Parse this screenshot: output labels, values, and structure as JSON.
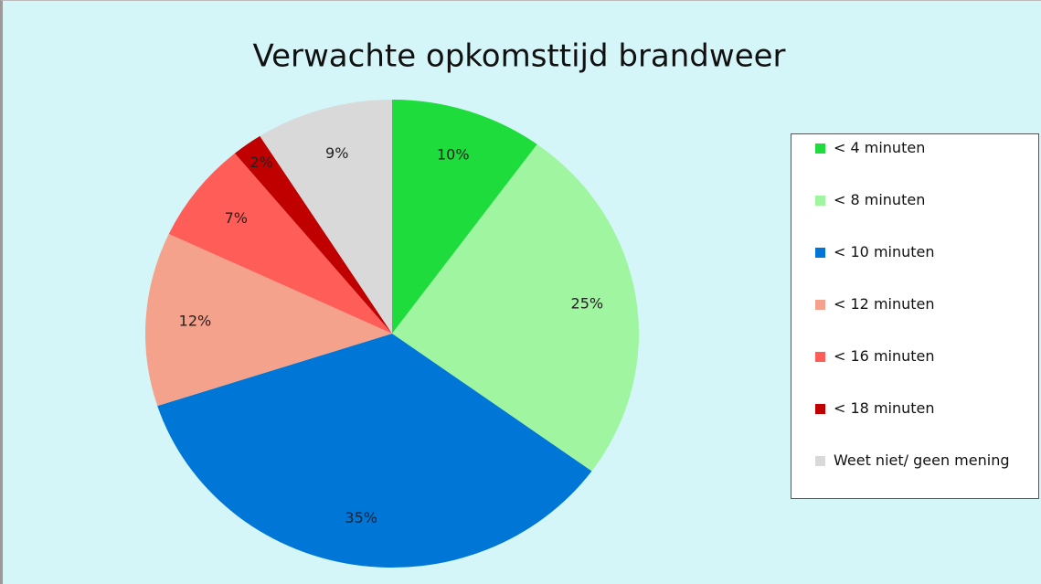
{
  "chart_data": {
    "type": "pie",
    "title": "Verwachte opkomsttijd brandweer",
    "categories": [
      "< 4 minuten",
      "< 8 minuten",
      "< 10 minuten",
      "< 12 minuten",
      "< 16 minuten",
      "< 18 minuten",
      "Weet niet/ geen mening"
    ],
    "values": [
      10,
      25,
      35,
      12,
      7,
      2,
      9
    ],
    "value_labels": [
      "10%",
      "25%",
      "35%",
      "12%",
      "7%",
      "2%",
      "9%"
    ],
    "colors": [
      "#1ddc3c",
      "#a0f6a0",
      "#0076d6",
      "#f4a28c",
      "#ff5e58",
      "#c00000",
      "#d9d9d9"
    ],
    "legend": "right"
  }
}
